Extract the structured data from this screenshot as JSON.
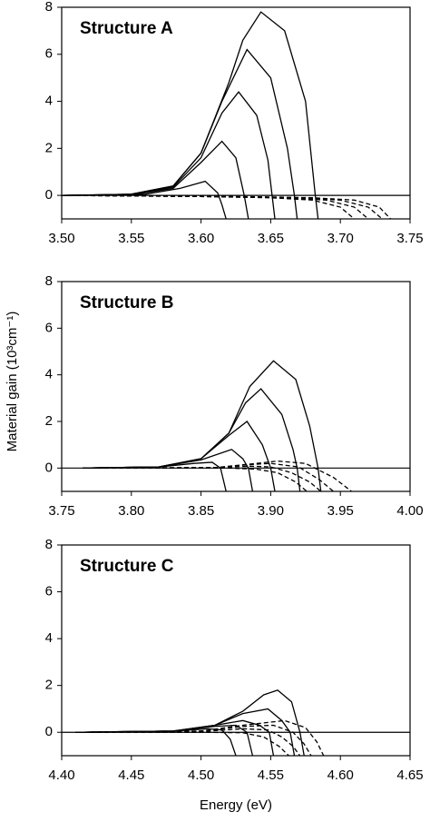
{
  "chart_data": [
    {
      "type": "line",
      "title": "Structure A",
      "xlim": [
        3.5,
        3.75
      ],
      "ylim": [
        -1,
        8
      ],
      "xticks": [
        {
          "value": 3.5,
          "label": "3.50"
        },
        3.55,
        {
          "value": 3.6,
          "label": "3.60"
        },
        3.65,
        {
          "value": 3.7,
          "label": "3.70"
        },
        3.75
      ],
      "yticks": [
        0,
        2,
        4,
        6,
        8
      ],
      "hline": 0,
      "series": [
        {
          "color": "#000",
          "style": "solid",
          "x": [
            3.5,
            3.55,
            3.58,
            3.6,
            3.62,
            3.63,
            3.643,
            3.66,
            3.675,
            3.682,
            3.684
          ],
          "values": [
            0,
            0.05,
            0.4,
            1.8,
            4.8,
            6.6,
            7.8,
            7.0,
            4.0,
            0,
            -1
          ]
        },
        {
          "color": "#000",
          "style": "solid",
          "x": [
            3.5,
            3.55,
            3.58,
            3.6,
            3.615,
            3.633,
            3.65,
            3.662,
            3.667,
            3.669
          ],
          "values": [
            0,
            0.05,
            0.4,
            1.8,
            4.0,
            6.2,
            5.0,
            2.0,
            0,
            -1
          ]
        },
        {
          "color": "#000",
          "style": "solid",
          "x": [
            3.5,
            3.55,
            3.58,
            3.6,
            3.615,
            3.627,
            3.64,
            3.648,
            3.651,
            3.653
          ],
          "values": [
            0,
            0.03,
            0.35,
            1.6,
            3.5,
            4.4,
            3.4,
            1.5,
            0,
            -1
          ]
        },
        {
          "color": "#000",
          "style": "solid",
          "x": [
            3.5,
            3.55,
            3.58,
            3.6,
            3.615,
            3.625,
            3.631,
            3.634
          ],
          "values": [
            0,
            0.02,
            0.3,
            1.4,
            2.3,
            1.6,
            0,
            -1
          ]
        },
        {
          "color": "#000",
          "style": "solid",
          "x": [
            3.5,
            3.56,
            3.585,
            3.603,
            3.612,
            3.615,
            3.618
          ],
          "values": [
            0,
            0.05,
            0.3,
            0.6,
            0.1,
            -0.4,
            -1
          ]
        },
        {
          "color": "#000",
          "style": "dashed",
          "x": [
            3.5,
            3.6,
            3.65,
            3.68,
            3.7,
            3.71
          ],
          "values": [
            0,
            -0.05,
            -0.1,
            -0.2,
            -0.5,
            -1
          ]
        },
        {
          "color": "#000",
          "style": "dashed",
          "x": [
            3.5,
            3.6,
            3.66,
            3.69,
            3.71,
            3.72
          ],
          "values": [
            0,
            -0.05,
            -0.1,
            -0.2,
            -0.5,
            -1
          ]
        },
        {
          "color": "#000",
          "style": "dashed",
          "x": [
            3.5,
            3.62,
            3.67,
            3.7,
            3.72,
            3.73
          ],
          "values": [
            0,
            -0.05,
            -0.1,
            -0.2,
            -0.5,
            -1
          ]
        },
        {
          "color": "#000",
          "style": "dashed",
          "x": [
            3.5,
            3.63,
            3.68,
            3.71,
            3.728,
            3.736
          ],
          "values": [
            0,
            -0.05,
            -0.1,
            -0.2,
            -0.5,
            -1
          ]
        }
      ]
    },
    {
      "type": "line",
      "title": "Structure B",
      "ylabel": "Material gain (10³cm⁻¹)",
      "xlim": [
        3.75,
        4.0
      ],
      "ylim": [
        -1,
        8
      ],
      "xticks": [
        3.75,
        {
          "value": 3.8,
          "label": "3.80"
        },
        3.85,
        {
          "value": 3.9,
          "label": "3.90"
        },
        3.95,
        {
          "value": 4.0,
          "label": "4.00"
        }
      ],
      "yticks": [
        0,
        2,
        4,
        6,
        8
      ],
      "hline": 0,
      "series": [
        {
          "color": "#000",
          "style": "solid",
          "x": [
            3.765,
            3.82,
            3.85,
            3.87,
            3.885,
            3.902,
            3.918,
            3.928,
            3.934,
            3.936
          ],
          "values": [
            0,
            0.05,
            0.4,
            1.5,
            3.5,
            4.6,
            3.8,
            1.8,
            0,
            -1
          ]
        },
        {
          "color": "#000",
          "style": "solid",
          "x": [
            3.765,
            3.82,
            3.85,
            3.87,
            3.882,
            3.893,
            3.908,
            3.916,
            3.919,
            3.921
          ],
          "values": [
            0,
            0.05,
            0.4,
            1.5,
            2.8,
            3.4,
            2.3,
            0.8,
            0,
            -1
          ]
        },
        {
          "color": "#000",
          "style": "solid",
          "x": [
            3.765,
            3.82,
            3.85,
            3.87,
            3.883,
            3.894,
            3.9,
            3.903
          ],
          "values": [
            0,
            0.05,
            0.4,
            1.4,
            2.0,
            1.0,
            0,
            -1
          ]
        },
        {
          "color": "#000",
          "style": "solid",
          "x": [
            3.765,
            3.82,
            3.85,
            3.872,
            3.88,
            3.884,
            3.887
          ],
          "values": [
            0,
            0.05,
            0.35,
            0.8,
            0.4,
            0,
            -1
          ]
        },
        {
          "color": "#000",
          "style": "solid",
          "x": [
            3.765,
            3.82,
            3.845,
            3.858,
            3.864,
            3.868
          ],
          "values": [
            0,
            0.05,
            0.2,
            0.25,
            0,
            -1
          ]
        },
        {
          "color": "#000",
          "style": "dashed",
          "x": [
            3.765,
            3.86,
            3.89,
            3.905,
            3.925,
            3.945,
            3.958
          ],
          "values": [
            0,
            0.02,
            0.2,
            0.3,
            0.2,
            -0.4,
            -1
          ]
        },
        {
          "color": "#000",
          "style": "dashed",
          "x": [
            3.765,
            3.86,
            3.885,
            3.9,
            3.92,
            3.935,
            3.945
          ],
          "values": [
            0,
            0.02,
            0.15,
            0.2,
            0.05,
            -0.5,
            -1
          ]
        },
        {
          "color": "#000",
          "style": "dashed",
          "x": [
            3.765,
            3.86,
            3.885,
            3.9,
            3.915,
            3.928,
            3.936
          ],
          "values": [
            0,
            0.02,
            0.08,
            0.05,
            -0.2,
            -0.6,
            -1
          ]
        },
        {
          "color": "#000",
          "style": "dashed",
          "x": [
            3.765,
            3.87,
            3.89,
            3.905,
            3.918,
            3.926
          ],
          "values": [
            0,
            0,
            -0.05,
            -0.2,
            -0.6,
            -1
          ]
        }
      ]
    },
    {
      "type": "line",
      "title": "Structure C",
      "xlabel": "Energy (eV)",
      "xlim": [
        4.4,
        4.65
      ],
      "ylim": [
        -1,
        8
      ],
      "xticks": [
        {
          "value": 4.4,
          "label": "4.40"
        },
        4.45,
        {
          "value": 4.5,
          "label": "4.50"
        },
        4.55,
        {
          "value": 4.6,
          "label": "4.60"
        },
        4.65
      ],
      "yticks": [
        0,
        2,
        4,
        6,
        8
      ],
      "hline": 0,
      "series": [
        {
          "color": "#000",
          "style": "solid",
          "x": [
            4.41,
            4.48,
            4.51,
            4.53,
            4.545,
            4.555,
            4.565,
            4.571,
            4.574
          ],
          "values": [
            0,
            0.05,
            0.3,
            0.9,
            1.6,
            1.8,
            1.3,
            0,
            -1
          ]
        },
        {
          "color": "#000",
          "style": "solid",
          "x": [
            4.41,
            4.48,
            4.51,
            4.53,
            4.548,
            4.558,
            4.564,
            4.567
          ],
          "values": [
            0,
            0.05,
            0.3,
            0.8,
            1.0,
            0.5,
            0,
            -1
          ]
        },
        {
          "color": "#000",
          "style": "solid",
          "x": [
            4.41,
            4.48,
            4.51,
            4.53,
            4.542,
            4.549,
            4.552
          ],
          "values": [
            0,
            0.05,
            0.3,
            0.5,
            0.3,
            0,
            -1
          ]
        },
        {
          "color": "#000",
          "style": "solid",
          "x": [
            4.41,
            4.48,
            4.51,
            4.525,
            4.533,
            4.537
          ],
          "values": [
            0,
            0.05,
            0.25,
            0.3,
            0,
            -1
          ]
        },
        {
          "color": "#000",
          "style": "solid",
          "x": [
            4.41,
            4.48,
            4.505,
            4.515,
            4.521,
            4.525
          ],
          "values": [
            0,
            0.05,
            0.15,
            0.1,
            -0.3,
            -1
          ]
        },
        {
          "color": "#000",
          "style": "dashed",
          "x": [
            4.41,
            4.5,
            4.53,
            4.56,
            4.575,
            4.583,
            4.588
          ],
          "values": [
            0,
            0.05,
            0.3,
            0.5,
            0.2,
            -0.4,
            -1
          ]
        },
        {
          "color": "#000",
          "style": "dashed",
          "x": [
            4.41,
            4.5,
            4.53,
            4.552,
            4.566,
            4.574,
            4.579
          ],
          "values": [
            0,
            0.05,
            0.25,
            0.3,
            0,
            -0.5,
            -1
          ]
        },
        {
          "color": "#000",
          "style": "dashed",
          "x": [
            4.41,
            4.5,
            4.53,
            4.548,
            4.558,
            4.566,
            4.571
          ],
          "values": [
            0,
            0.03,
            0.15,
            0.1,
            -0.2,
            -0.6,
            -1
          ]
        },
        {
          "color": "#000",
          "style": "dashed",
          "x": [
            4.41,
            4.5,
            4.53,
            4.545,
            4.556,
            4.563
          ],
          "values": [
            0,
            0,
            -0.02,
            -0.2,
            -0.6,
            -1
          ]
        }
      ]
    }
  ]
}
